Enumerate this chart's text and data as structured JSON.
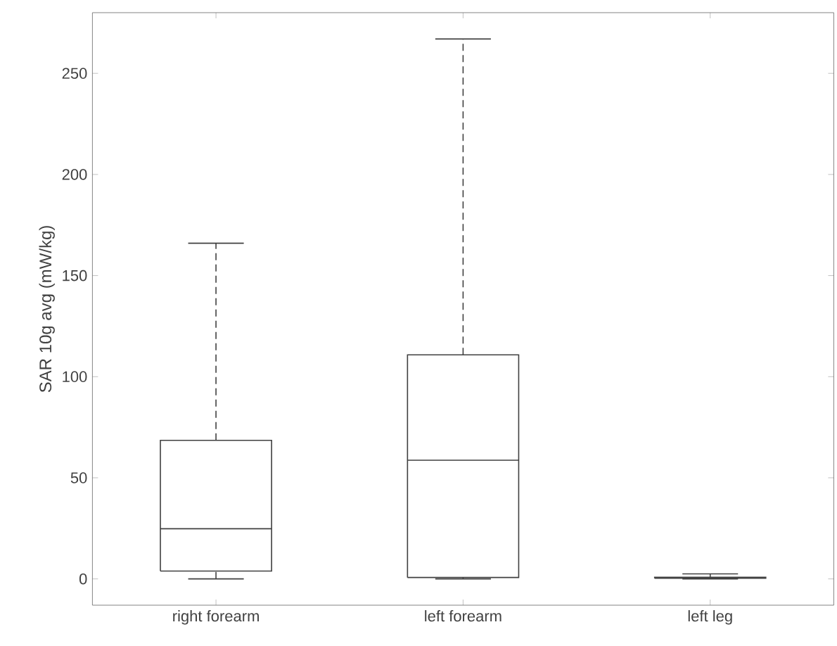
{
  "chart_data": {
    "type": "box",
    "ylabel": "SAR 10g avg (mW/kg)",
    "categories": [
      "right forearm",
      "left forearm",
      "left leg"
    ],
    "boxes": [
      {
        "low": 0,
        "q1": 3.9,
        "median": 24.8,
        "q3": 68.5,
        "high": 166
      },
      {
        "low": 0,
        "q1": 0.7,
        "median": 58.7,
        "q3": 110.8,
        "high": 267
      },
      {
        "low": 0,
        "q1": 0.3,
        "median": 0.5,
        "q3": 0.8,
        "high": 2.5
      }
    ],
    "color": "#404040",
    "ylim": [
      -13,
      280
    ],
    "yticks": [
      0,
      50,
      100,
      150,
      200,
      250
    ],
    "grid": false
  }
}
